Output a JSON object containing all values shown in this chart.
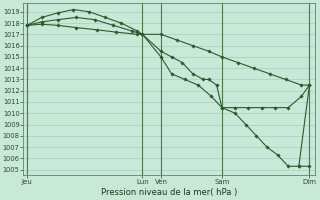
{
  "xlabel": "Pression niveau de la mer( hPa )",
  "background_color": "#c8e8d8",
  "grid_color": "#a0c8b8",
  "line_color": "#2a5c2a",
  "ylim": [
    1004.5,
    1019.8
  ],
  "ytick_min": 1005,
  "ytick_max": 1019,
  "xlim": [
    0,
    11.0
  ],
  "xtick_positions": [
    0.15,
    4.5,
    5.2,
    7.5,
    10.8
  ],
  "xtick_labels": [
    "Jeu",
    "Lun",
    "Ven",
    "Sam",
    "Dim"
  ],
  "vline_positions": [
    0.15,
    4.5,
    5.2,
    7.5,
    10.8
  ],
  "series": [
    {
      "x": [
        0.15,
        0.7,
        1.3,
        1.9,
        2.5,
        3.1,
        3.7,
        4.3,
        4.5,
        5.2,
        5.8,
        6.4,
        7.0,
        7.5,
        8.1,
        8.7,
        9.3,
        9.9,
        10.5,
        10.8
      ],
      "y": [
        1017.8,
        1018.5,
        1018.9,
        1019.2,
        1019.0,
        1018.5,
        1018.0,
        1017.3,
        1017.0,
        1017.0,
        1016.5,
        1016.0,
        1015.5,
        1015.0,
        1014.5,
        1014.0,
        1013.5,
        1013.0,
        1012.5,
        1012.5
      ]
    },
    {
      "x": [
        0.15,
        0.7,
        1.3,
        2.0,
        2.8,
        3.5,
        4.3,
        4.5,
        5.2,
        5.6,
        6.0,
        6.4,
        6.8,
        7.0,
        7.3,
        7.5,
        8.0,
        8.5,
        9.0,
        9.5,
        10.0,
        10.5,
        10.8
      ],
      "y": [
        1017.8,
        1017.9,
        1017.8,
        1017.6,
        1017.4,
        1017.2,
        1017.0,
        1017.0,
        1015.5,
        1015.0,
        1014.5,
        1013.5,
        1013.0,
        1013.0,
        1012.5,
        1010.5,
        1010.5,
        1010.5,
        1010.5,
        1010.5,
        1010.5,
        1011.5,
        1012.5
      ]
    },
    {
      "x": [
        0.15,
        0.7,
        1.3,
        2.0,
        2.7,
        3.4,
        4.1,
        4.5,
        5.2,
        5.6,
        6.1,
        6.6,
        7.1,
        7.5,
        8.0,
        8.4,
        8.8,
        9.2,
        9.6,
        10.0,
        10.4,
        10.8
      ],
      "y": [
        1017.8,
        1018.1,
        1018.3,
        1018.5,
        1018.3,
        1017.8,
        1017.3,
        1017.0,
        1015.0,
        1013.5,
        1013.0,
        1012.5,
        1011.5,
        1010.5,
        1010.0,
        1009.0,
        1008.0,
        1007.0,
        1006.3,
        1005.3,
        1005.3,
        1005.3
      ]
    }
  ],
  "extra_segment": {
    "x": [
      10.4,
      10.8
    ],
    "y": [
      1005.3,
      1012.5
    ]
  }
}
